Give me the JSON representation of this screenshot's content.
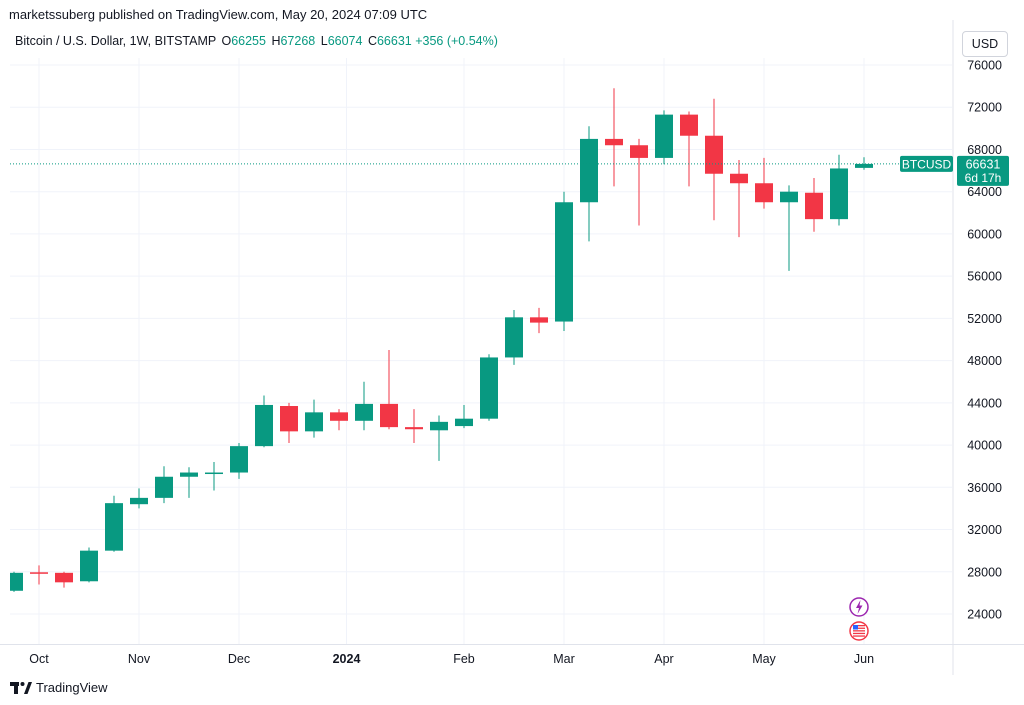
{
  "header": {
    "published": "marketssuberg published on TradingView.com, May 20, 2024 07:09 UTC"
  },
  "legend": {
    "symbol": "Bitcoin / U.S. Dollar, 1W, BITSTAMP",
    "o_label": "O",
    "o_value": "66255",
    "h_label": "H",
    "h_value": "67268",
    "l_label": "L",
    "l_value": "66074",
    "c_label": "C",
    "c_value": "66631",
    "change": "+356 (+0.54%)"
  },
  "currency_button": "USD",
  "price_tag": {
    "ticker": "BTCUSD",
    "price": "66631",
    "countdown": "6d 17h"
  },
  "footer": {
    "logo_text": "TradingView"
  },
  "colors": {
    "up": "#089981",
    "down": "#f23645",
    "grid": "#f0f3fa",
    "text": "#131722"
  },
  "icons": [
    "lightning-event-icon",
    "us-flag-event-icon"
  ],
  "chart_data": {
    "type": "candlestick",
    "title": "Bitcoin / U.S. Dollar, 1W, BITSTAMP",
    "current_price": 66631,
    "ylim": [
      20000,
      78000
    ],
    "y_ticks": [
      24000,
      28000,
      32000,
      36000,
      40000,
      44000,
      48000,
      52000,
      56000,
      60000,
      64000,
      68000,
      72000,
      76000
    ],
    "x_ticks": [
      {
        "label": "Oct",
        "week": 1.0,
        "bold": false
      },
      {
        "label": "Nov",
        "week": 5.0,
        "bold": false
      },
      {
        "label": "Dec",
        "week": 9.0,
        "bold": false
      },
      {
        "label": "2024",
        "week": 13.3,
        "bold": true
      },
      {
        "label": "Feb",
        "week": 18.0,
        "bold": false
      },
      {
        "label": "Mar",
        "week": 22.0,
        "bold": false
      },
      {
        "label": "Apr",
        "week": 26.0,
        "bold": false
      },
      {
        "label": "May",
        "week": 30.0,
        "bold": false
      },
      {
        "label": "Jun",
        "week": 34.0,
        "bold": false
      }
    ],
    "candles": [
      {
        "o": 26200,
        "h": 28000,
        "l": 26100,
        "c": 27900
      },
      {
        "o": 27950,
        "h": 28600,
        "l": 26800,
        "c": 27900
      },
      {
        "o": 27900,
        "h": 28000,
        "l": 26500,
        "c": 27000
      },
      {
        "o": 27100,
        "h": 30300,
        "l": 27000,
        "c": 30000
      },
      {
        "o": 30000,
        "h": 35200,
        "l": 29900,
        "c": 34500
      },
      {
        "o": 34400,
        "h": 35900,
        "l": 34000,
        "c": 35000
      },
      {
        "o": 35000,
        "h": 38000,
        "l": 34500,
        "c": 37000
      },
      {
        "o": 37000,
        "h": 37900,
        "l": 35000,
        "c": 37400
      },
      {
        "o": 37400,
        "h": 38400,
        "l": 35700,
        "c": 37400
      },
      {
        "o": 37400,
        "h": 40200,
        "l": 36800,
        "c": 39900
      },
      {
        "o": 39900,
        "h": 44700,
        "l": 39800,
        "c": 43800
      },
      {
        "o": 43700,
        "h": 44000,
        "l": 40200,
        "c": 41300
      },
      {
        "o": 41300,
        "h": 44300,
        "l": 40700,
        "c": 43100
      },
      {
        "o": 43100,
        "h": 43400,
        "l": 41400,
        "c": 42300
      },
      {
        "o": 42300,
        "h": 46000,
        "l": 41400,
        "c": 43900
      },
      {
        "o": 43900,
        "h": 49000,
        "l": 41500,
        "c": 41700
      },
      {
        "o": 41700,
        "h": 43400,
        "l": 40200,
        "c": 41500
      },
      {
        "o": 41400,
        "h": 42800,
        "l": 38500,
        "c": 42200
      },
      {
        "o": 41800,
        "h": 43800,
        "l": 41600,
        "c": 42500
      },
      {
        "o": 42500,
        "h": 48600,
        "l": 42300,
        "c": 48300
      },
      {
        "o": 48300,
        "h": 52800,
        "l": 47600,
        "c": 52100
      },
      {
        "o": 52100,
        "h": 53000,
        "l": 50600,
        "c": 51600
      },
      {
        "o": 51700,
        "h": 64000,
        "l": 50800,
        "c": 63000
      },
      {
        "o": 63000,
        "h": 70200,
        "l": 59300,
        "c": 69000
      },
      {
        "o": 69000,
        "h": 73800,
        "l": 64500,
        "c": 68400
      },
      {
        "o": 68400,
        "h": 69000,
        "l": 60800,
        "c": 67200
      },
      {
        "o": 67200,
        "h": 71700,
        "l": 66600,
        "c": 71300
      },
      {
        "o": 71300,
        "h": 71600,
        "l": 64500,
        "c": 69300
      },
      {
        "o": 69300,
        "h": 72800,
        "l": 61300,
        "c": 65700
      },
      {
        "o": 65700,
        "h": 67000,
        "l": 59700,
        "c": 64800
      },
      {
        "o": 64800,
        "h": 67200,
        "l": 62400,
        "c": 63000
      },
      {
        "o": 63000,
        "h": 64600,
        "l": 56500,
        "c": 64000
      },
      {
        "o": 63900,
        "h": 65300,
        "l": 60200,
        "c": 61400
      },
      {
        "o": 61400,
        "h": 67500,
        "l": 60800,
        "c": 66200
      },
      {
        "o": 66255,
        "h": 67268,
        "l": 66074,
        "c": 66631
      }
    ]
  }
}
